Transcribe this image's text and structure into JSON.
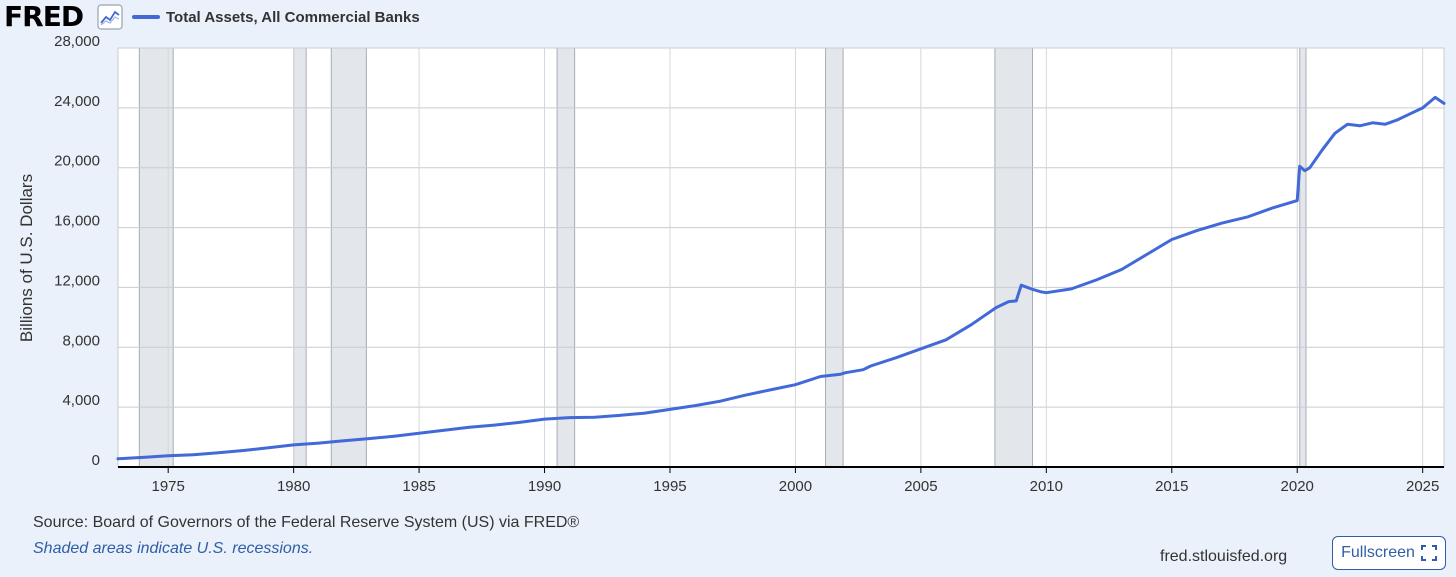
{
  "header": {
    "logo": "FRED",
    "logo_icon": "line-chart-icon"
  },
  "footer": {
    "source": "Source: Board of Governors of the Federal Reserve System (US) via FRED®",
    "recession_note": "Shaded areas indicate U.S. recessions.",
    "site": "fred.stlouisfed.org",
    "fullscreen_label": "Fullscreen",
    "fullscreen_icon": "expand-corners-icon"
  },
  "colors": {
    "series": "#4169d8",
    "recession": "#e3e6ea",
    "background": "#eaf1fa",
    "link": "#2f5ea8"
  },
  "chart_data": {
    "type": "line",
    "ylabel": "Billions of U.S. Dollars",
    "xlabel": "",
    "legend": "top-left",
    "grid": true,
    "xlim": [
      1973.0,
      2025.85
    ],
    "ylim": [
      0,
      28000
    ],
    "yticks": [
      0,
      4000,
      8000,
      12000,
      16000,
      20000,
      24000,
      28000
    ],
    "ytick_labels": [
      "0",
      "4,000",
      "8,000",
      "12,000",
      "16,000",
      "20,000",
      "24,000",
      "28,000"
    ],
    "xticks": [
      1975,
      1980,
      1985,
      1990,
      1995,
      2000,
      2005,
      2010,
      2015,
      2020,
      2025
    ],
    "xtick_labels": [
      "1975",
      "1980",
      "1985",
      "1990",
      "1995",
      "2000",
      "2005",
      "2010",
      "2015",
      "2020",
      "2025"
    ],
    "recessions": [
      [
        1973.85,
        1975.2
      ],
      [
        1980.0,
        1980.5
      ],
      [
        1981.5,
        1982.9
      ],
      [
        1990.5,
        1991.2
      ],
      [
        2001.2,
        2001.9
      ],
      [
        2007.95,
        2009.45
      ],
      [
        2020.1,
        2020.35
      ]
    ],
    "series": [
      {
        "name": "Total Assets, All Commercial Banks",
        "x": [
          1973.0,
          1974.0,
          1975.0,
          1976.0,
          1977.0,
          1978.0,
          1979.0,
          1980.0,
          1981.0,
          1982.0,
          1983.0,
          1984.0,
          1985.0,
          1986.0,
          1987.0,
          1988.0,
          1989.0,
          1990.0,
          1991.0,
          1992.0,
          1993.0,
          1994.0,
          1995.0,
          1996.0,
          1997.0,
          1998.0,
          1999.0,
          2000.0,
          2001.0,
          2001.8,
          2002.0,
          2002.7,
          2003.0,
          2004.0,
          2005.0,
          2006.0,
          2007.0,
          2008.0,
          2008.5,
          2008.8,
          2009.0,
          2009.4,
          2009.8,
          2010.0,
          2011.0,
          2012.0,
          2013.0,
          2014.0,
          2015.0,
          2016.0,
          2017.0,
          2018.0,
          2019.0,
          2020.0,
          2020.1,
          2020.3,
          2020.5,
          2021.0,
          2021.5,
          2022.0,
          2022.5,
          2023.0,
          2023.5,
          2024.0,
          2024.5,
          2025.0,
          2025.5,
          2025.85
        ],
        "y": [
          550,
          640,
          750,
          820,
          950,
          1100,
          1280,
          1480,
          1600,
          1750,
          1900,
          2050,
          2250,
          2450,
          2650,
          2800,
          2980,
          3200,
          3300,
          3320,
          3450,
          3600,
          3850,
          4100,
          4400,
          4800,
          5150,
          5500,
          6050,
          6200,
          6300,
          6500,
          6750,
          7300,
          7900,
          8500,
          9500,
          10650,
          11050,
          11100,
          12150,
          11900,
          11700,
          11650,
          11900,
          12500,
          13200,
          14200,
          15200,
          15800,
          16300,
          16700,
          17300,
          17800,
          20100,
          19800,
          20000,
          21200,
          22300,
          22900,
          22800,
          23000,
          22900,
          23200,
          23600,
          24000,
          24700,
          24300
        ]
      }
    ]
  }
}
